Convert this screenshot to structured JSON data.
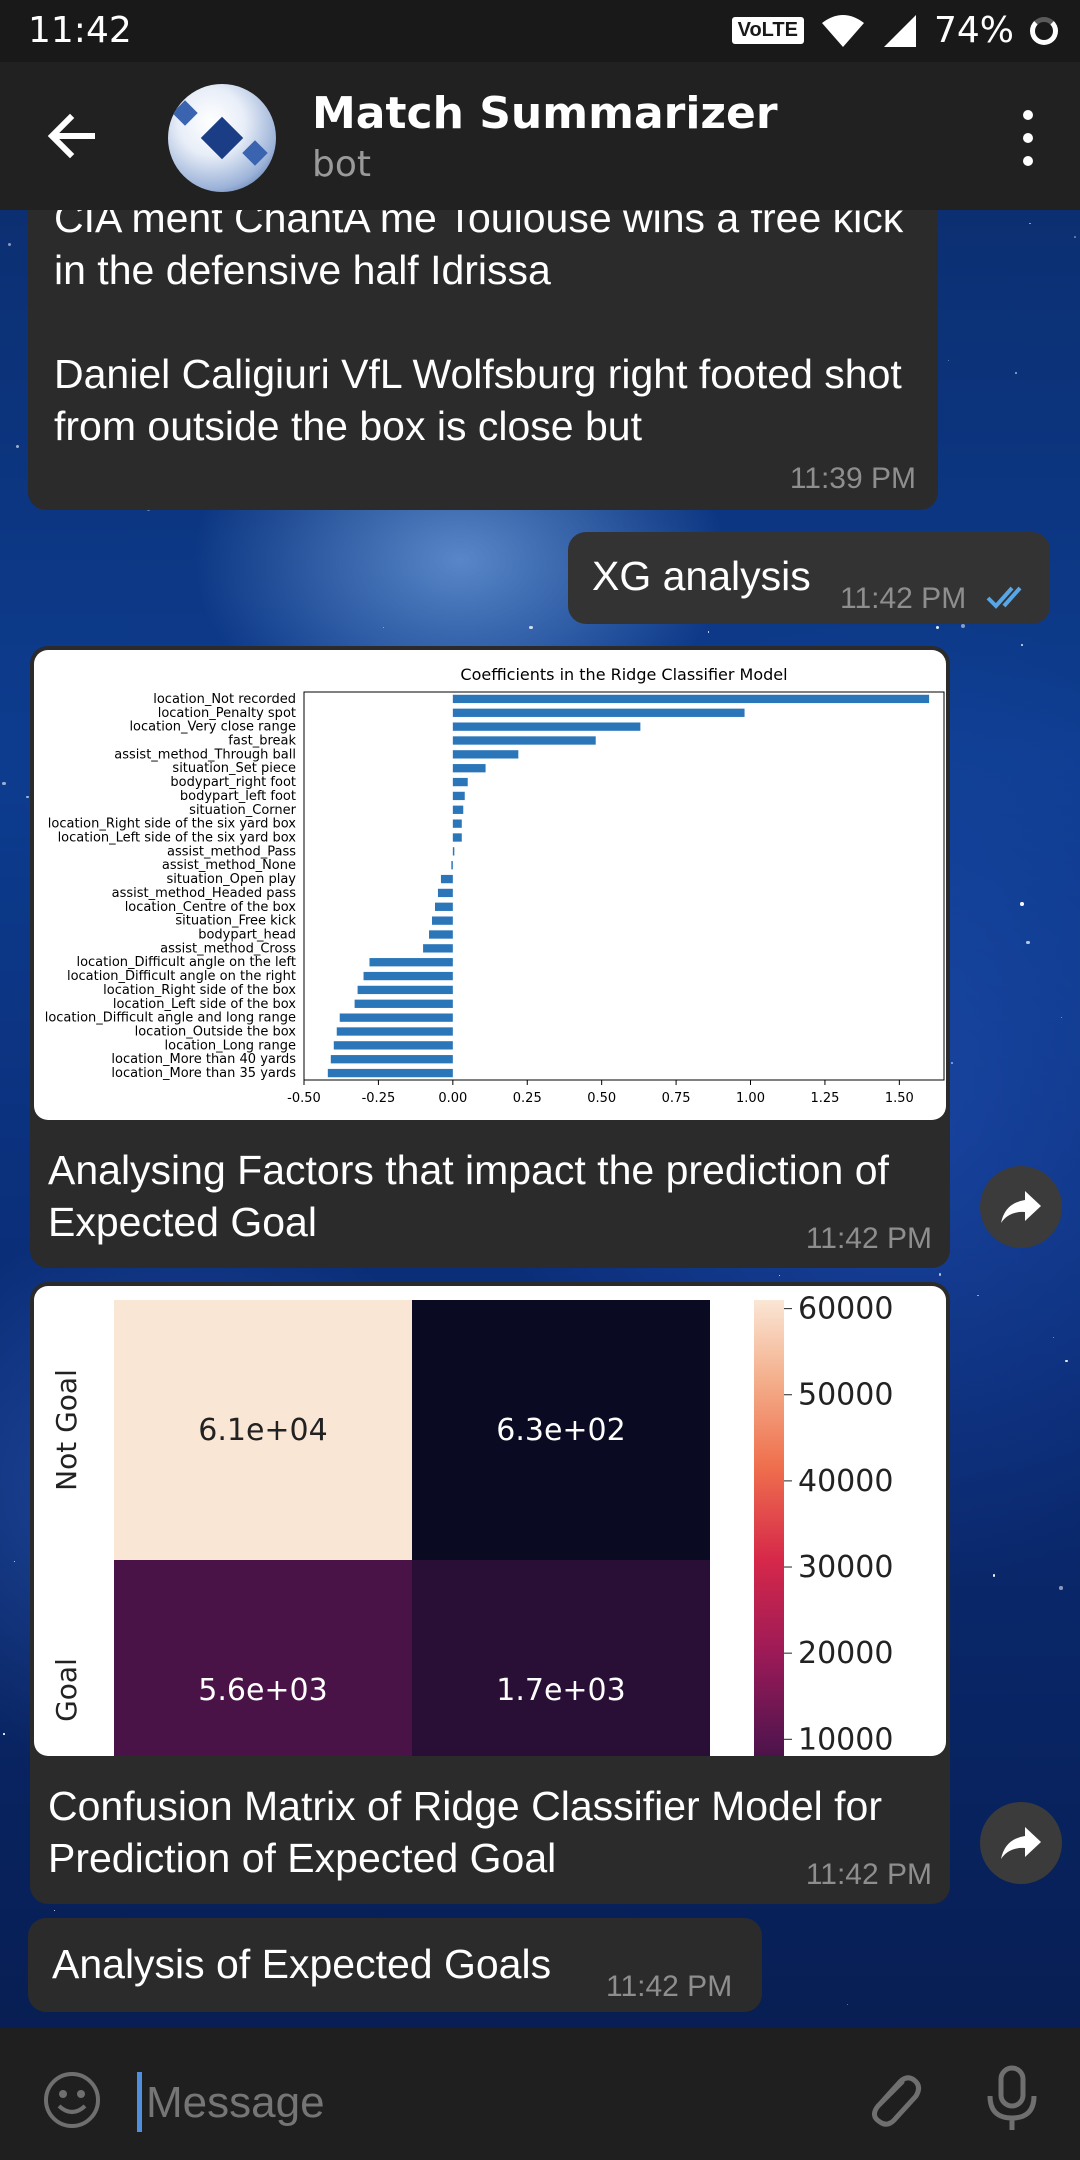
{
  "status_bar": {
    "time": "11:42",
    "network_badge": "VoLTE",
    "battery": "74%"
  },
  "header": {
    "title": "Match Summarizer",
    "subtitle": "bot"
  },
  "messages": [
    {
      "type": "text",
      "direction": "incoming",
      "text": "CIA ment ChantA me Toulouse wins a free kick in the defensive half Idrissa\n\nDaniel Caligiuri VfL Wolfsburg right footed shot from outside the box is close but",
      "time": "11:39 PM"
    },
    {
      "type": "text",
      "direction": "outgoing",
      "text": "XG analysis",
      "time": "11:42 PM",
      "status": "read"
    },
    {
      "type": "photo",
      "direction": "incoming",
      "caption": "Analysing Factors that impact the prediction of Expected Goal",
      "time": "11:42 PM"
    },
    {
      "type": "photo",
      "direction": "incoming",
      "caption": "Confusion Matrix of Ridge Classifier Model for Prediction of Expected Goal",
      "time": "11:42 PM"
    },
    {
      "type": "text",
      "direction": "incoming",
      "text": "Analysis of Expected Goals",
      "time": "11:42 PM"
    }
  ],
  "input": {
    "placeholder": "Message"
  },
  "icons": {
    "back": "arrow-left-icon",
    "menu": "more-vertical-icon",
    "share": "share-icon",
    "emoji": "emoji-icon",
    "attach": "paperclip-icon",
    "mic": "microphone-icon",
    "read": "double-check-icon"
  },
  "colors": {
    "bar_blue": "#2b76b9",
    "heat_light": "#fae6d5",
    "heat_dark": "#0a0b22",
    "read_tick": "#58a6e6"
  },
  "chart_data": [
    {
      "type": "bar",
      "orientation": "horizontal",
      "title": "Coefficients in the Ridge Classifier Model",
      "categories": [
        "location_Not recorded",
        "location_Penalty spot",
        "location_Very close range",
        "fast_break",
        "assist_method_Through ball",
        "situation_Set piece",
        "bodypart_right foot",
        "bodypart_left foot",
        "situation_Corner",
        "location_Right side of the six yard box",
        "location_Left side of the six yard box",
        "assist_method_Pass",
        "assist_method_None",
        "situation_Open play",
        "assist_method_Headed pass",
        "location_Centre of the box",
        "situation_Free kick",
        "bodypart_head",
        "assist_method_Cross",
        "location_Difficult angle on the left",
        "location_Difficult angle on the right",
        "location_Right side of the box",
        "location_Left side of the box",
        "location_Difficult angle and long range",
        "location_Outside the box",
        "location_Long range",
        "location_More than 40 yards",
        "location_More than 35 yards"
      ],
      "values": [
        1.6,
        0.98,
        0.63,
        0.48,
        0.22,
        0.11,
        0.05,
        0.04,
        0.035,
        0.03,
        0.03,
        0.005,
        -0.005,
        -0.04,
        -0.05,
        -0.06,
        -0.07,
        -0.08,
        -0.1,
        -0.28,
        -0.3,
        -0.32,
        -0.33,
        -0.38,
        -0.39,
        -0.4,
        -0.41,
        -0.42
      ],
      "xlim": [
        -0.5,
        1.65
      ],
      "xticks": [
        "-0.50",
        "-0.25",
        "0.00",
        "0.25",
        "0.50",
        "0.75",
        "1.00",
        "1.25",
        "1.50"
      ],
      "xtick_values": [
        -0.5,
        -0.25,
        0,
        0.25,
        0.5,
        0.75,
        1.0,
        1.25,
        1.5
      ]
    },
    {
      "type": "heatmap",
      "rows": [
        "Not Goal",
        "Goal"
      ],
      "cells": [
        [
          "6.1e+04",
          "6.3e+02"
        ],
        [
          "5.6e+03",
          "1.7e+03"
        ]
      ],
      "values": [
        [
          61000,
          630
        ],
        [
          5600,
          1700
        ]
      ],
      "colorbar_ticks": [
        "60000",
        "50000",
        "40000",
        "30000",
        "20000",
        "10000"
      ],
      "colorbar_range": [
        630,
        61000
      ]
    }
  ]
}
